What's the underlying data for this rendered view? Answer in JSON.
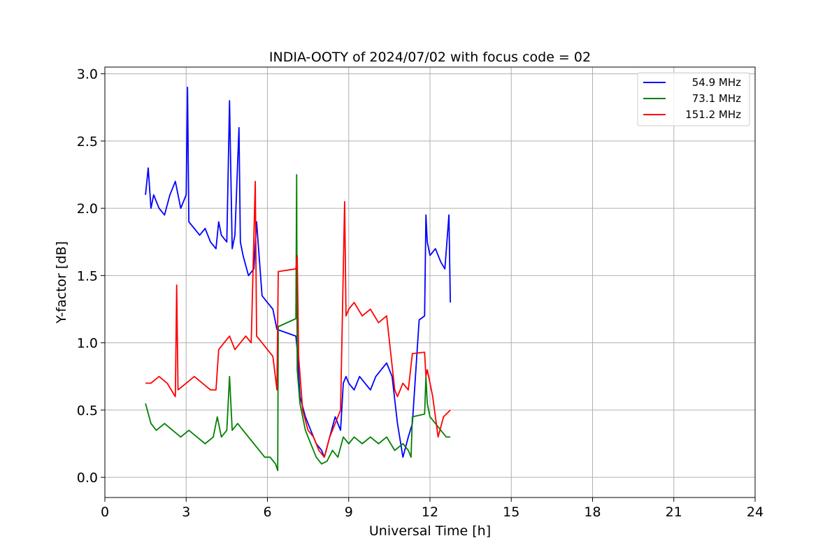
{
  "chart_data": {
    "type": "line",
    "title": "INDIA-OOTY of 2024/07/02 with focus code = 02",
    "xlabel": "Universal Time [h]",
    "ylabel": "Y-factor [dB]",
    "xlim": [
      0,
      24
    ],
    "ylim": [
      -0.15,
      3.05
    ],
    "xticks": [
      0,
      3,
      6,
      9,
      12,
      15,
      18,
      21,
      24
    ],
    "yticks": [
      0.0,
      0.5,
      1.0,
      1.5,
      2.0,
      2.5,
      3.0
    ],
    "xtick_labels": [
      "0",
      "3",
      "6",
      "9",
      "12",
      "15",
      "18",
      "21",
      "24"
    ],
    "ytick_labels": [
      "0.0",
      "0.5",
      "1.0",
      "1.5",
      "2.0",
      "2.5",
      "3.0"
    ],
    "grid": true,
    "legend_position": "top-right",
    "series": [
      {
        "name": "54.9 MHz",
        "color": "#0000ff",
        "x": [
          1.5,
          1.6,
          1.7,
          1.8,
          2.0,
          2.2,
          2.4,
          2.6,
          2.8,
          3.0,
          3.05,
          3.1,
          3.3,
          3.5,
          3.7,
          3.9,
          4.1,
          4.2,
          4.3,
          4.5,
          4.6,
          4.7,
          4.8,
          4.95,
          5.0,
          5.1,
          5.3,
          5.5,
          5.6,
          5.8,
          6.0,
          6.2,
          6.35,
          7.05,
          7.1,
          7.2,
          7.4,
          7.6,
          7.8,
          8.0,
          8.1,
          8.3,
          8.5,
          8.7,
          8.8,
          8.9,
          9.0,
          9.2,
          9.4,
          9.6,
          9.8,
          10.0,
          10.2,
          10.4,
          10.6,
          10.8,
          11.0,
          11.2,
          11.35,
          11.6,
          11.8,
          11.85,
          11.9,
          12.0,
          12.2,
          12.4,
          12.55,
          12.7,
          12.75
        ],
        "y": [
          2.1,
          2.3,
          2.0,
          2.1,
          2.0,
          1.95,
          2.1,
          2.2,
          2.0,
          2.1,
          2.9,
          1.9,
          1.85,
          1.8,
          1.85,
          1.75,
          1.7,
          1.9,
          1.8,
          1.75,
          2.8,
          1.7,
          1.8,
          2.6,
          1.75,
          1.65,
          1.5,
          1.55,
          1.9,
          1.35,
          1.3,
          1.25,
          1.1,
          1.05,
          0.95,
          0.6,
          0.45,
          0.35,
          0.25,
          0.2,
          0.15,
          0.3,
          0.45,
          0.35,
          0.7,
          0.75,
          0.7,
          0.65,
          0.75,
          0.7,
          0.65,
          0.75,
          0.8,
          0.85,
          0.75,
          0.4,
          0.15,
          0.3,
          0.4,
          1.17,
          1.2,
          1.95,
          1.75,
          1.65,
          1.7,
          1.6,
          1.55,
          1.95,
          1.3
        ]
      },
      {
        "name": "73.1 MHz",
        "color": "#008000",
        "x": [
          1.5,
          1.7,
          1.9,
          2.2,
          2.5,
          2.8,
          3.1,
          3.4,
          3.7,
          4.0,
          4.15,
          4.3,
          4.5,
          4.6,
          4.7,
          4.9,
          5.1,
          5.3,
          5.5,
          5.7,
          5.9,
          6.1,
          6.3,
          6.38,
          6.4,
          7.05,
          7.08,
          7.1,
          7.2,
          7.4,
          7.6,
          7.8,
          8.0,
          8.2,
          8.4,
          8.6,
          8.8,
          9.0,
          9.2,
          9.5,
          9.8,
          10.1,
          10.4,
          10.7,
          11.0,
          11.2,
          11.3,
          11.35,
          11.8,
          11.85,
          11.9,
          12.0,
          12.2,
          12.4,
          12.6,
          12.75
        ],
        "y": [
          0.55,
          0.4,
          0.35,
          0.4,
          0.35,
          0.3,
          0.35,
          0.3,
          0.25,
          0.3,
          0.45,
          0.3,
          0.35,
          0.75,
          0.35,
          0.4,
          0.35,
          0.3,
          0.25,
          0.2,
          0.15,
          0.15,
          0.1,
          0.05,
          1.12,
          1.18,
          2.25,
          0.8,
          0.55,
          0.35,
          0.25,
          0.15,
          0.1,
          0.12,
          0.2,
          0.15,
          0.3,
          0.25,
          0.3,
          0.25,
          0.3,
          0.25,
          0.3,
          0.2,
          0.25,
          0.2,
          0.15,
          0.45,
          0.47,
          0.75,
          0.55,
          0.45,
          0.4,
          0.35,
          0.3,
          0.3
        ]
      },
      {
        "name": "151.2 MHz",
        "color": "#ff0000",
        "x": [
          1.5,
          1.7,
          2.0,
          2.3,
          2.6,
          2.65,
          2.7,
          3.0,
          3.3,
          3.6,
          3.9,
          4.1,
          4.2,
          4.4,
          4.6,
          4.8,
          5.0,
          5.2,
          5.4,
          5.55,
          5.6,
          5.8,
          6.0,
          6.2,
          6.35,
          6.4,
          7.05,
          7.1,
          7.15,
          7.3,
          7.5,
          7.7,
          7.9,
          8.1,
          8.3,
          8.5,
          8.7,
          8.85,
          8.9,
          9.0,
          9.2,
          9.5,
          9.8,
          10.1,
          10.4,
          10.7,
          10.8,
          11.0,
          11.2,
          11.35,
          11.8,
          11.85,
          11.9,
          12.1,
          12.3,
          12.5,
          12.75
        ],
        "y": [
          0.7,
          0.7,
          0.75,
          0.7,
          0.6,
          1.43,
          0.65,
          0.7,
          0.75,
          0.7,
          0.65,
          0.65,
          0.95,
          1.0,
          1.05,
          0.95,
          1.0,
          1.05,
          1.0,
          2.2,
          1.05,
          1.0,
          0.95,
          0.9,
          0.65,
          1.53,
          1.55,
          1.65,
          0.9,
          0.5,
          0.35,
          0.3,
          0.2,
          0.15,
          0.3,
          0.4,
          0.5,
          2.05,
          1.2,
          1.25,
          1.3,
          1.2,
          1.25,
          1.15,
          1.2,
          0.65,
          0.6,
          0.7,
          0.65,
          0.92,
          0.93,
          0.75,
          0.8,
          0.6,
          0.3,
          0.45,
          0.5
        ]
      }
    ]
  }
}
